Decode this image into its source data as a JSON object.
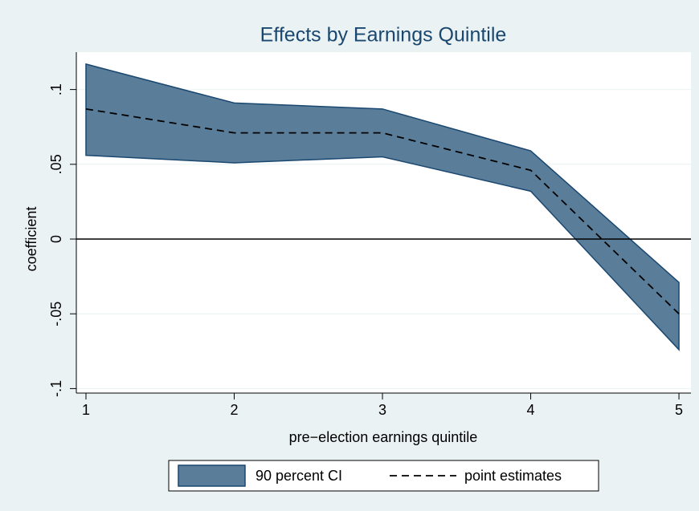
{
  "chart_data": {
    "type": "band-line",
    "title": "Effects by Earnings Quintile",
    "x_label": "pre−election earnings quintile",
    "y_label": "coefficient",
    "x": [
      1,
      2,
      3,
      4,
      5
    ],
    "series": [
      {
        "name": "90 percent CI",
        "color": "#5a7e9a",
        "edge_color": "#1a476f",
        "upper": [
          0.117,
          0.091,
          0.087,
          0.059,
          -0.029
        ],
        "lower": [
          0.056,
          0.051,
          0.055,
          0.032,
          -0.074
        ]
      },
      {
        "name": "point estimates",
        "color": "#000000",
        "dashed": true,
        "values": [
          0.087,
          0.071,
          0.071,
          0.046,
          -0.05
        ]
      }
    ],
    "xlim": [
      0.935,
      5.081
    ],
    "xticks": [
      1,
      2,
      3,
      4,
      5
    ],
    "ylim": [
      -0.103,
      0.125
    ],
    "yticks": [
      {
        "value": -0.1,
        "label": "-.1"
      },
      {
        "value": -0.05,
        "label": "-.05"
      },
      0,
      {
        "value": 0.05,
        "label": ".05"
      },
      {
        "value": 0.1,
        "label": ".1"
      }
    ],
    "hline": 0,
    "grid": true,
    "legend": "bottom"
  }
}
